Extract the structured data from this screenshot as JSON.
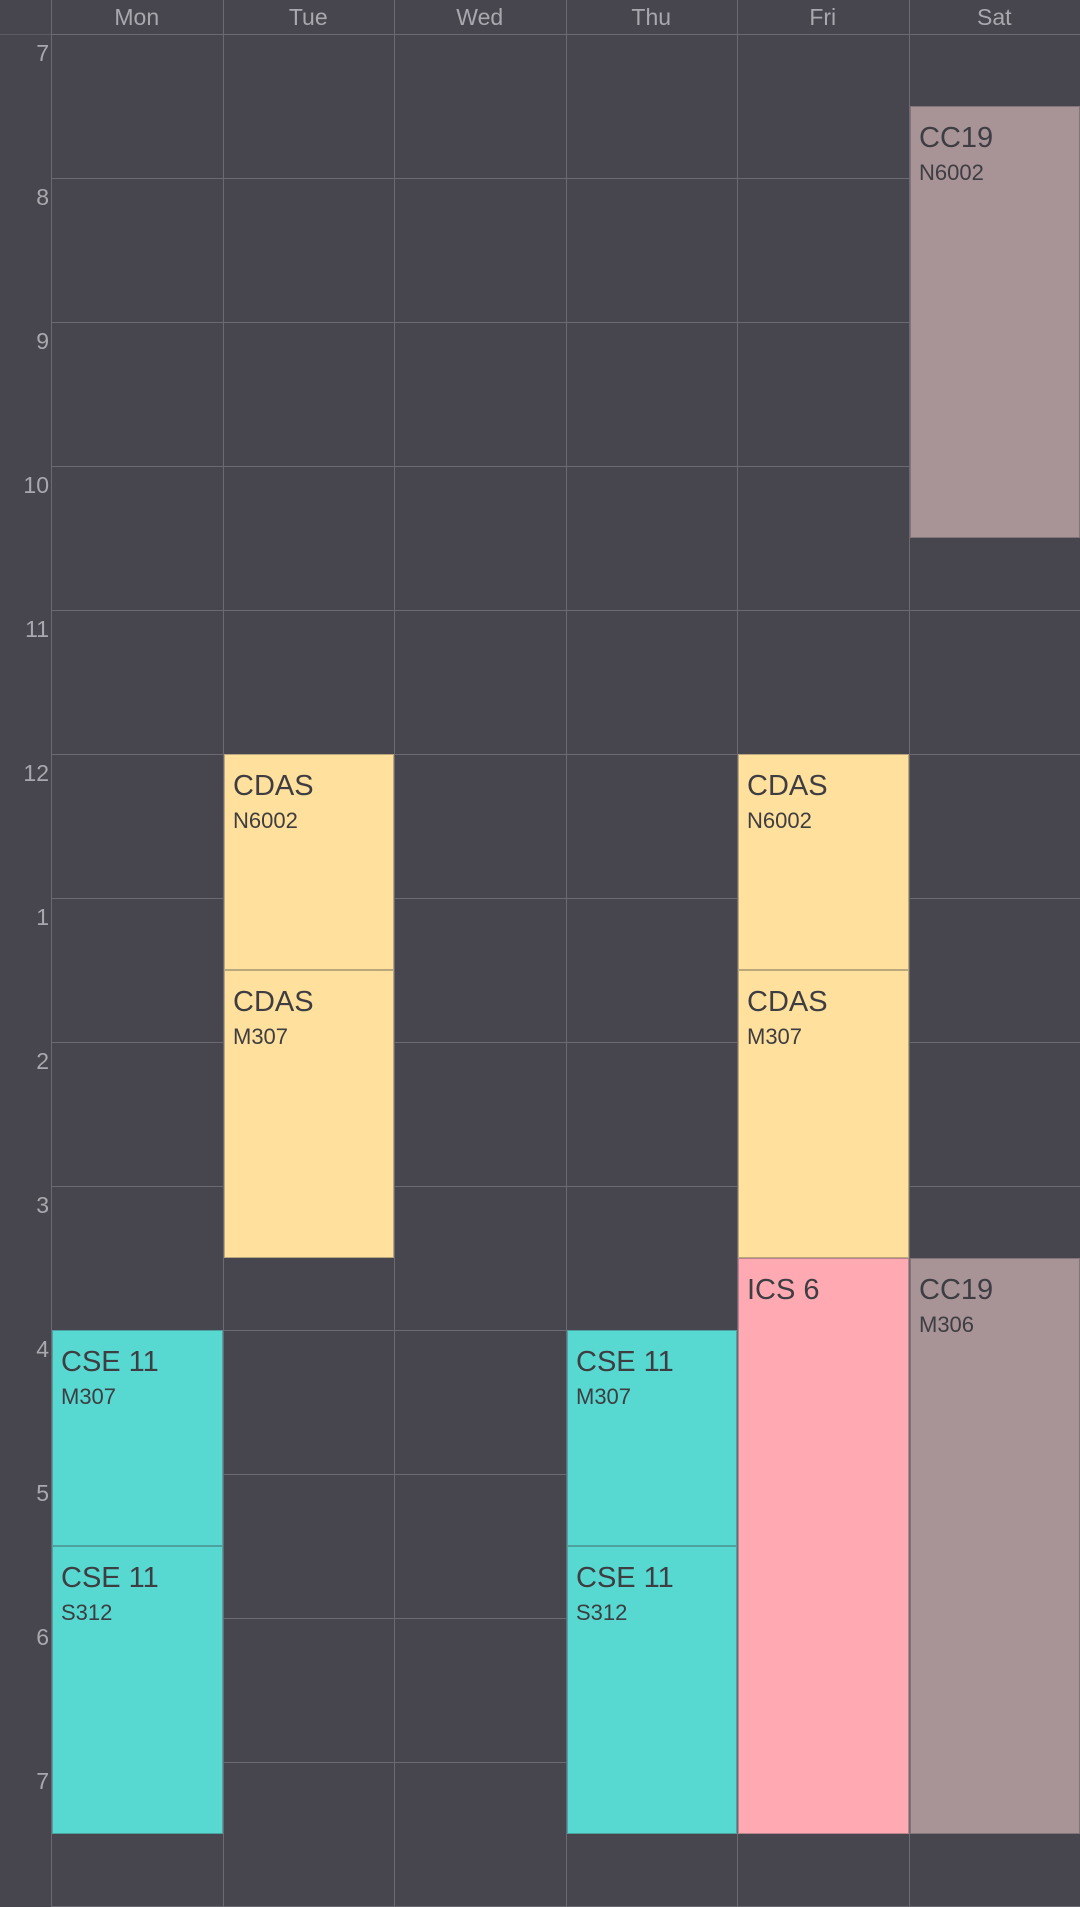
{
  "colors": {
    "background": "#47464e",
    "grid_line": "#6b6a72",
    "label_text": "#a9a8ae",
    "event_text": "#3d3d42",
    "course_cc19": "#a89497",
    "course_cdas": "#ffe09c",
    "course_cse11": "#57d8d0",
    "course_ics6": "#ffaab3"
  },
  "days": [
    "Mon",
    "Tue",
    "Wed",
    "Thu",
    "Fri",
    "Sat"
  ],
  "hours": [
    "7",
    "8",
    "9",
    "10",
    "11",
    "12",
    "1",
    "2",
    "3",
    "4",
    "5",
    "6",
    "7"
  ],
  "events": [
    {
      "day": 5,
      "start": 7.5,
      "end": 10.5,
      "title": "CC19",
      "room": "N6002",
      "color_key": "course_cc19"
    },
    {
      "day": 1,
      "start": 12,
      "end": 13.5,
      "title": "CDAS",
      "room": "N6002",
      "color_key": "course_cdas"
    },
    {
      "day": 1,
      "start": 13.5,
      "end": 15.5,
      "title": "CDAS",
      "room": "M307",
      "color_key": "course_cdas"
    },
    {
      "day": 4,
      "start": 12,
      "end": 13.5,
      "title": "CDAS",
      "room": "N6002",
      "color_key": "course_cdas"
    },
    {
      "day": 4,
      "start": 13.5,
      "end": 15.5,
      "title": "CDAS",
      "room": "M307",
      "color_key": "course_cdas"
    },
    {
      "day": 4,
      "start": 15.5,
      "end": 19.5,
      "title": "ICS 6",
      "room": "",
      "color_key": "course_ics6"
    },
    {
      "day": 5,
      "start": 15.5,
      "end": 19.5,
      "title": "CC19",
      "room": "M306",
      "color_key": "course_cc19"
    },
    {
      "day": 0,
      "start": 16,
      "end": 17.5,
      "title": "CSE 11",
      "room": "M307",
      "color_key": "course_cse11"
    },
    {
      "day": 0,
      "start": 17.5,
      "end": 19.5,
      "title": "CSE 11",
      "room": "S312",
      "color_key": "course_cse11"
    },
    {
      "day": 3,
      "start": 16,
      "end": 17.5,
      "title": "CSE 11",
      "room": "M307",
      "color_key": "course_cse11"
    },
    {
      "day": 3,
      "start": 17.5,
      "end": 19.5,
      "title": "CSE 11",
      "room": "S312",
      "color_key": "course_cse11"
    }
  ]
}
